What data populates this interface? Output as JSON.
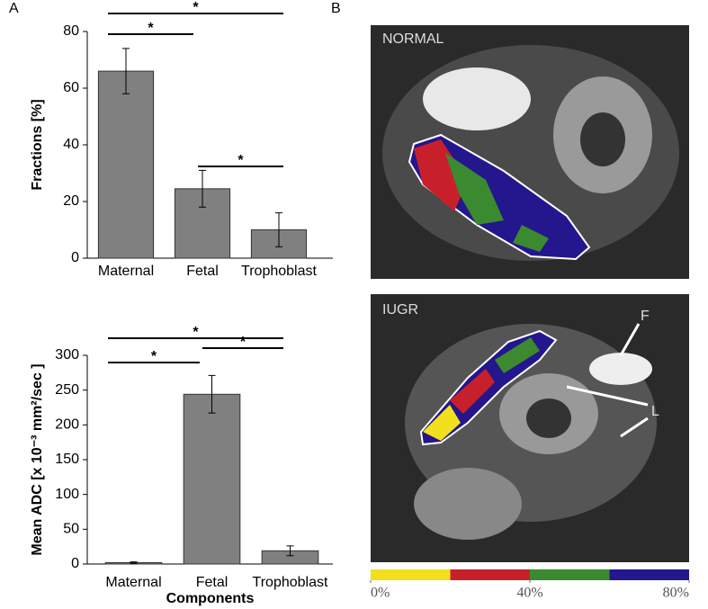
{
  "panel_labels": [
    "A",
    "B"
  ],
  "chart_data": [
    {
      "type": "bar",
      "ylabel": "Fractions [%]",
      "categories": [
        "Maternal",
        "Fetal",
        "Trophoblast"
      ],
      "values": [
        66,
        24.5,
        10
      ],
      "errors": [
        8,
        6.5,
        6
      ],
      "color": "#808080",
      "ylim": [
        0,
        80
      ],
      "yticks": [
        0,
        20,
        40,
        60,
        80
      ],
      "significance": [
        {
          "from": 0,
          "to": 1,
          "label": "*"
        },
        {
          "from": 0,
          "to": 2,
          "label": "*"
        },
        {
          "from": 1,
          "to": 2,
          "label": "*"
        }
      ]
    },
    {
      "type": "bar",
      "ylabel": "Mean ADC [x 10⁻³ mm²/sec ]",
      "xlabel": "Components",
      "categories": [
        "Maternal",
        "Fetal",
        "Trophoblast"
      ],
      "values": [
        2,
        244,
        19
      ],
      "errors": [
        1,
        27,
        7
      ],
      "color": "#808080",
      "ylim": [
        0,
        300
      ],
      "yticks": [
        0,
        50,
        100,
        150,
        200,
        250,
        300
      ],
      "significance": [
        {
          "from": 0,
          "to": 1,
          "label": "*"
        },
        {
          "from": 0,
          "to": 2,
          "label": "*"
        },
        {
          "from": 1,
          "to": 2,
          "label": "*"
        }
      ]
    }
  ],
  "images": [
    {
      "label": "NORMAL"
    },
    {
      "label": "IUGR",
      "annotations": [
        "F",
        "L"
      ]
    }
  ],
  "colorbar": {
    "colors": [
      "#f2e01c",
      "#c8202a",
      "#3b8a2f",
      "#24168c"
    ],
    "lim": [
      0,
      80
    ],
    "ticks": [
      {
        "value": 0,
        "label": "0%"
      },
      {
        "value": 40,
        "label": "40%"
      },
      {
        "value": 80,
        "label": "80%"
      }
    ]
  }
}
